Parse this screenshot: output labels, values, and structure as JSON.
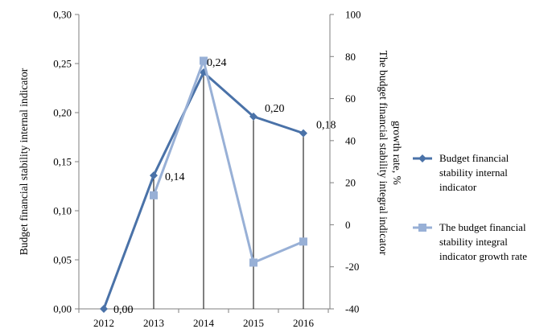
{
  "chart_data": {
    "type": "line",
    "categories": [
      "2012",
      "2013",
      "2014",
      "2015",
      "2016"
    ],
    "series": [
      {
        "name": "Budget financial stability internal indicator",
        "axis": "left",
        "values": [
          0.0,
          0.136,
          0.241,
          0.196,
          0.179
        ],
        "labels": [
          "0,00",
          "0,14",
          "0,24",
          "0,20",
          "0,18"
        ],
        "color": "#4a72a8",
        "marker": "diamond"
      },
      {
        "name": "The budget financial stability integral indicator growth rate",
        "axis": "right",
        "values": [
          null,
          14,
          78,
          -18,
          -8
        ],
        "color": "#98b0d6",
        "marker": "square"
      }
    ],
    "y_left": {
      "label": "Budget financial stability internal indicator",
      "min": 0,
      "max": 0.3,
      "step": 0.05,
      "ticks": [
        "0,00",
        "0,05",
        "0,10",
        "0,15",
        "0,20",
        "0,25",
        "0,30"
      ]
    },
    "y_right": {
      "label_lines": [
        "The budget financial stability integral indicator",
        "growth rate, %"
      ],
      "min": -40,
      "max": 100,
      "step": 20,
      "ticks": [
        "-40",
        "-20",
        "0",
        "20",
        "40",
        "60",
        "80",
        "100"
      ]
    },
    "legend": {
      "position": "right",
      "items": [
        {
          "lines": [
            "Budget financial",
            "stability internal",
            "indicator"
          ]
        },
        {
          "lines": [
            "The budget financial",
            "stability integral",
            "indicator growth rate"
          ]
        }
      ]
    },
    "drop_lines": true,
    "grid": false
  }
}
